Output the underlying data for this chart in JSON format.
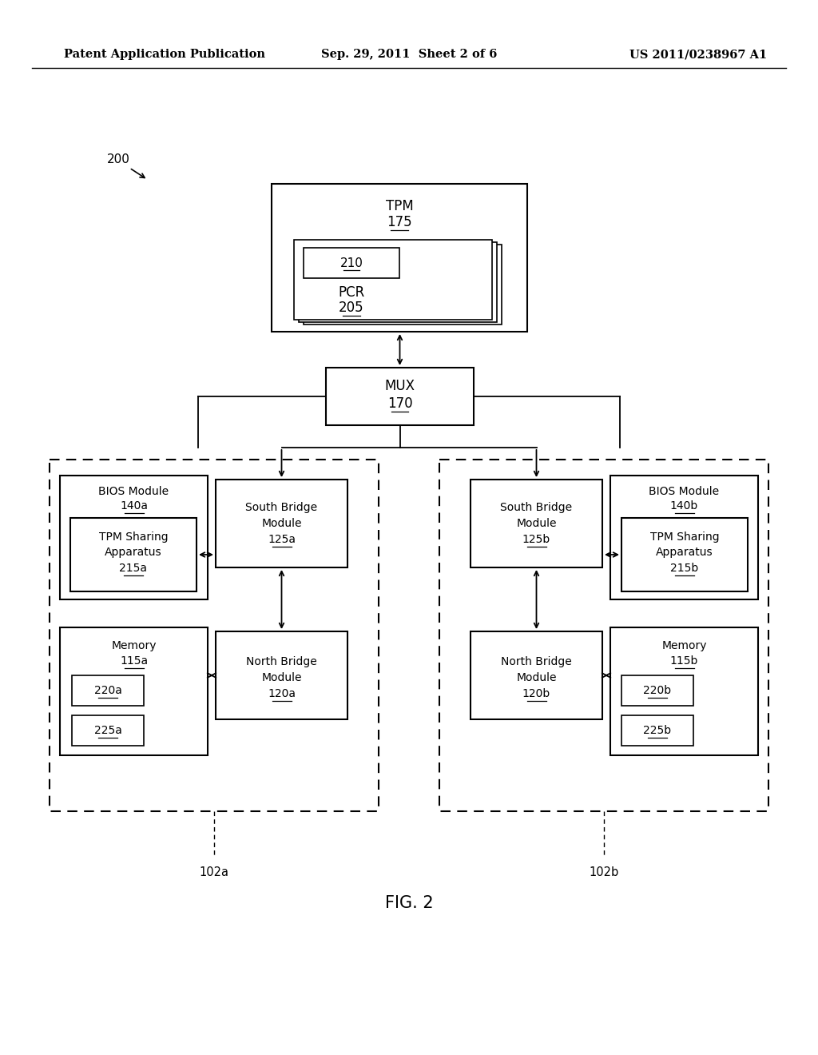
{
  "bg_color": "#ffffff",
  "header_left": "Patent Application Publication",
  "header_mid": "Sep. 29, 2011  Sheet 2 of 6",
  "header_right": "US 2011/0238967 A1",
  "fig_label": "FIG. 2",
  "label_200": "200",
  "label_102a": "102a",
  "label_102b": "102b"
}
